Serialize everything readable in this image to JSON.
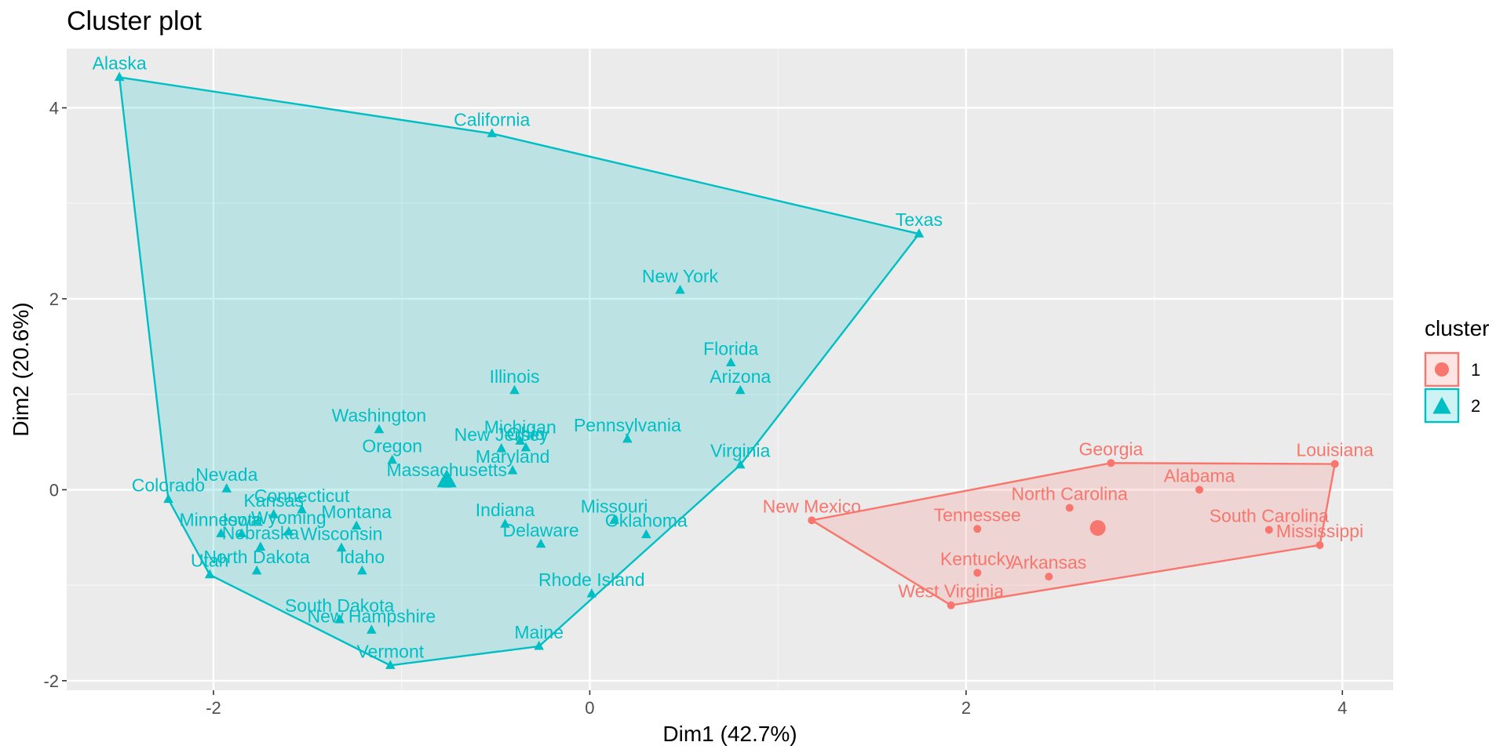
{
  "chart_data": {
    "type": "scatter",
    "title": "Cluster plot",
    "xlabel": "Dim1 (42.7%)",
    "ylabel": "Dim2 (20.6%)",
    "xlim": [
      -2.78,
      4.27
    ],
    "ylim": [
      -2.1,
      4.62
    ],
    "xticks": [
      -2,
      0,
      2,
      4
    ],
    "yticks": [
      -2,
      0,
      2,
      4
    ],
    "xtick_labels": [
      "-2",
      "0",
      "2",
      "4"
    ],
    "ytick_labels": [
      "-2",
      "0",
      "2",
      "4"
    ],
    "grid": true,
    "legend": {
      "title": "cluster",
      "position": "right",
      "entries": [
        {
          "label": "1",
          "color": "#F8766D",
          "shape": "circle"
        },
        {
          "label": "2",
          "color": "#00BFC4",
          "shape": "triangle"
        }
      ]
    },
    "series": [
      {
        "name": "1",
        "color": "#F8766D",
        "shape": "circle",
        "centroid": {
          "x": 2.7,
          "y": -0.4
        },
        "hull": [
          "Georgia",
          "Louisiana",
          "Mississippi",
          "West Virginia",
          "New Mexico"
        ],
        "points": [
          {
            "label": "Georgia",
            "x": 2.77,
            "y": 0.28
          },
          {
            "label": "Louisiana",
            "x": 3.96,
            "y": 0.27
          },
          {
            "label": "Alabama",
            "x": 3.24,
            "y": 0.0
          },
          {
            "label": "North Carolina",
            "x": 2.55,
            "y": -0.19
          },
          {
            "label": "South Carolina",
            "x": 3.61,
            "y": -0.42
          },
          {
            "label": "Mississippi",
            "x": 3.88,
            "y": -0.58
          },
          {
            "label": "Tennessee",
            "x": 2.06,
            "y": -0.41
          },
          {
            "label": "New Mexico",
            "x": 1.18,
            "y": -0.32
          },
          {
            "label": "Kentucky",
            "x": 2.06,
            "y": -0.87
          },
          {
            "label": "Arkansas",
            "x": 2.44,
            "y": -0.91
          },
          {
            "label": "West Virginia",
            "x": 1.92,
            "y": -1.21
          }
        ]
      },
      {
        "name": "2",
        "color": "#00BFC4",
        "shape": "triangle",
        "centroid": {
          "x": -0.76,
          "y": 0.1
        },
        "hull": [
          "Alaska",
          "California",
          "Texas",
          "Virginia",
          "Maine",
          "Vermont",
          "Utah",
          "Colorado"
        ],
        "points": [
          {
            "label": "Alaska",
            "x": -2.5,
            "y": 4.32
          },
          {
            "label": "California",
            "x": -0.52,
            "y": 3.73
          },
          {
            "label": "Texas",
            "x": 1.75,
            "y": 2.68
          },
          {
            "label": "New York",
            "x": 0.48,
            "y": 2.09
          },
          {
            "label": "Florida",
            "x": 0.75,
            "y": 1.33
          },
          {
            "label": "Arizona",
            "x": 0.8,
            "y": 1.04
          },
          {
            "label": "Illinois",
            "x": -0.4,
            "y": 1.04
          },
          {
            "label": "Washington",
            "x": -1.12,
            "y": 0.63
          },
          {
            "label": "Oregon",
            "x": -1.05,
            "y": 0.31
          },
          {
            "label": "Michigan",
            "x": -0.37,
            "y": 0.51
          },
          {
            "label": "New Jersey",
            "x": -0.47,
            "y": 0.43
          },
          {
            "label": "Ohio",
            "x": -0.34,
            "y": 0.44
          },
          {
            "label": "Pennsylvania",
            "x": 0.2,
            "y": 0.53
          },
          {
            "label": "Maryland",
            "x": -0.41,
            "y": 0.2
          },
          {
            "label": "Massachusetts",
            "x": -0.76,
            "y": 0.06
          },
          {
            "label": "Virginia",
            "x": 0.8,
            "y": 0.26
          },
          {
            "label": "Colorado",
            "x": -2.24,
            "y": -0.1
          },
          {
            "label": "Nevada",
            "x": -1.93,
            "y": 0.01
          },
          {
            "label": "Connecticut",
            "x": -1.53,
            "y": -0.21
          },
          {
            "label": "Kansas",
            "x": -1.68,
            "y": -0.26
          },
          {
            "label": "Minnesota",
            "x": -1.96,
            "y": -0.46
          },
          {
            "label": "Iowa",
            "x": -1.85,
            "y": -0.46
          },
          {
            "label": "Wyoming",
            "x": -1.6,
            "y": -0.44
          },
          {
            "label": "Nebraska",
            "x": -1.75,
            "y": -0.6
          },
          {
            "label": "Montana",
            "x": -1.24,
            "y": -0.38
          },
          {
            "label": "Wisconsin",
            "x": -1.32,
            "y": -0.61
          },
          {
            "label": "North Dakota",
            "x": -1.77,
            "y": -0.85
          },
          {
            "label": "Utah",
            "x": -2.02,
            "y": -0.89
          },
          {
            "label": "Idaho",
            "x": -1.21,
            "y": -0.85
          },
          {
            "label": "Indiana",
            "x": -0.45,
            "y": -0.36
          },
          {
            "label": "Delaware",
            "x": -0.26,
            "y": -0.57
          },
          {
            "label": "Missouri",
            "x": 0.13,
            "y": -0.32
          },
          {
            "label": "Oklahoma",
            "x": 0.3,
            "y": -0.47
          },
          {
            "label": "Rhode Island",
            "x": 0.01,
            "y": -1.09
          },
          {
            "label": "South Dakota",
            "x": -1.33,
            "y": -1.36
          },
          {
            "label": "New Hampshire",
            "x": -1.16,
            "y": -1.47
          },
          {
            "label": "Maine",
            "x": -0.27,
            "y": -1.64
          },
          {
            "label": "Vermont",
            "x": -1.06,
            "y": -1.84
          }
        ]
      }
    ]
  }
}
